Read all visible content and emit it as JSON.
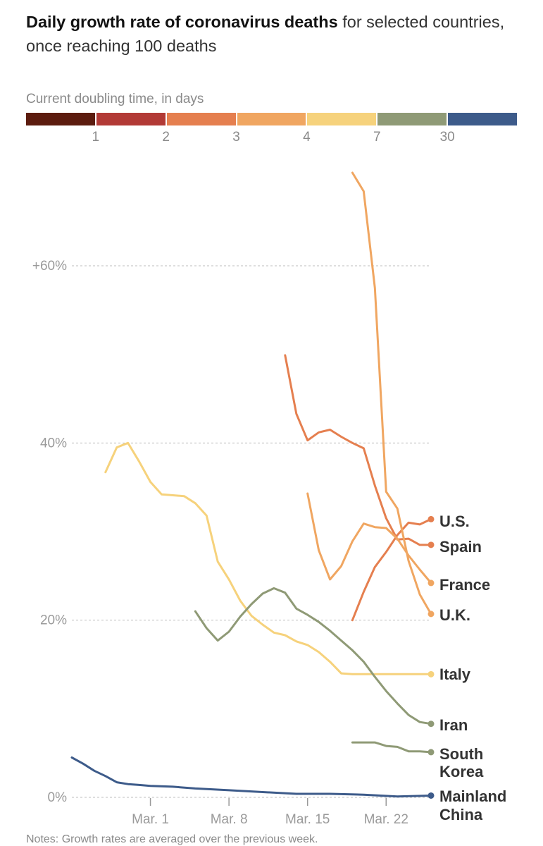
{
  "header": {
    "title_bold": "Daily growth rate of coronavirus deaths",
    "title_rest": " for selected countries, once reaching 100 deaths"
  },
  "legend_scale": {
    "label": "Current doubling time, in days",
    "colors": [
      "#5c1c0f",
      "#b23a36",
      "#e57f4f",
      "#f0a661",
      "#f6d27c",
      "#8f9a76",
      "#3d5b8a"
    ],
    "ticks": [
      "1",
      "2",
      "3",
      "4",
      "7",
      "30"
    ]
  },
  "note": "Notes: Growth rates are averaged over the previous week.",
  "chart_data": {
    "type": "line",
    "title": "Daily growth rate of coronavirus deaths for selected countries, once reaching 100 deaths",
    "xlabel": "",
    "ylabel": "",
    "x_range": [
      "2020-02-23",
      "2020-03-26"
    ],
    "ylim": [
      0,
      70
    ],
    "y_ticks": [
      0,
      20,
      40,
      60
    ],
    "y_tick_labels": [
      "0%",
      "20%",
      "40%",
      "+60%"
    ],
    "x_ticks": [
      "2020-03-01",
      "2020-03-08",
      "2020-03-15",
      "2020-03-22"
    ],
    "x_tick_labels": [
      "Mar. 1",
      "Mar. 8",
      "Mar. 15",
      "Mar. 22"
    ],
    "grid": "horizontal dashed",
    "series": [
      {
        "name": "U.S.",
        "color": "#e57f4f",
        "x": [
          "2020-03-19",
          "2020-03-20",
          "2020-03-21",
          "2020-03-22",
          "2020-03-23",
          "2020-03-24",
          "2020-03-25",
          "2020-03-26"
        ],
        "y": [
          20.0,
          23.2,
          26.0,
          27.7,
          29.6,
          31.0,
          30.8,
          31.4
        ]
      },
      {
        "name": "Spain",
        "color": "#e57f4f",
        "x": [
          "2020-03-13",
          "2020-03-14",
          "2020-03-15",
          "2020-03-16",
          "2020-03-17",
          "2020-03-18",
          "2020-03-19",
          "2020-03-20",
          "2020-03-21",
          "2020-03-22",
          "2020-03-23",
          "2020-03-24",
          "2020-03-25",
          "2020-03-26"
        ],
        "y": [
          49.9,
          43.3,
          40.3,
          41.2,
          41.5,
          40.7,
          40.0,
          39.4,
          35.2,
          31.5,
          29.1,
          29.2,
          28.5,
          28.5
        ]
      },
      {
        "name": "France",
        "color": "#f0a661",
        "x": [
          "2020-03-15",
          "2020-03-16",
          "2020-03-17",
          "2020-03-18",
          "2020-03-19",
          "2020-03-20",
          "2020-03-21",
          "2020-03-22",
          "2020-03-23",
          "2020-03-24",
          "2020-03-25",
          "2020-03-26"
        ],
        "y": [
          34.3,
          27.9,
          24.6,
          26.1,
          28.9,
          30.9,
          30.5,
          30.4,
          29.2,
          27.3,
          25.7,
          24.2
        ]
      },
      {
        "name": "U.K.",
        "color": "#f0a661",
        "x": [
          "2020-03-19",
          "2020-03-20",
          "2020-03-21",
          "2020-03-22",
          "2020-03-23",
          "2020-03-24",
          "2020-03-25",
          "2020-03-26"
        ],
        "y": [
          70.5,
          68.4,
          57.5,
          34.5,
          32.6,
          26.7,
          22.9,
          20.7
        ]
      },
      {
        "name": "Italy",
        "color": "#f6d27c",
        "x": [
          "2020-02-26",
          "2020-02-27",
          "2020-02-28",
          "2020-02-29",
          "2020-03-01",
          "2020-03-02",
          "2020-03-03",
          "2020-03-04",
          "2020-03-05",
          "2020-03-06",
          "2020-03-07",
          "2020-03-08",
          "2020-03-09",
          "2020-03-10",
          "2020-03-11",
          "2020-03-12",
          "2020-03-13",
          "2020-03-14",
          "2020-03-15",
          "2020-03-16",
          "2020-03-17",
          "2020-03-18",
          "2020-03-19",
          "2020-03-20",
          "2020-03-21",
          "2020-03-22",
          "2020-03-23",
          "2020-03-24",
          "2020-03-25",
          "2020-03-26"
        ],
        "y": [
          36.7,
          39.5,
          40.0,
          37.9,
          35.6,
          34.2,
          34.1,
          34.0,
          33.2,
          31.8,
          26.6,
          24.6,
          22.2,
          20.5,
          19.5,
          18.6,
          18.3,
          17.6,
          17.2,
          16.4,
          15.3,
          14.0,
          13.9,
          13.9,
          13.9,
          13.9,
          13.9,
          13.9,
          13.9,
          13.9
        ]
      },
      {
        "name": "Iran",
        "color": "#8f9a76",
        "x": [
          "2020-03-05",
          "2020-03-06",
          "2020-03-07",
          "2020-03-08",
          "2020-03-09",
          "2020-03-10",
          "2020-03-11",
          "2020-03-12",
          "2020-03-13",
          "2020-03-14",
          "2020-03-15",
          "2020-03-16",
          "2020-03-17",
          "2020-03-18",
          "2020-03-19",
          "2020-03-20",
          "2020-03-21",
          "2020-03-22",
          "2020-03-23",
          "2020-03-24",
          "2020-03-25",
          "2020-03-26"
        ],
        "y": [
          21.0,
          19.1,
          17.7,
          18.7,
          20.4,
          21.8,
          23.0,
          23.6,
          23.1,
          21.3,
          20.6,
          19.8,
          18.8,
          17.7,
          16.6,
          15.3,
          13.6,
          12.0,
          10.6,
          9.3,
          8.5,
          8.3
        ]
      },
      {
        "name": "South Korea",
        "color": "#8f9a76",
        "x": [
          "2020-03-19",
          "2020-03-20",
          "2020-03-21",
          "2020-03-22",
          "2020-03-23",
          "2020-03-24",
          "2020-03-25",
          "2020-03-26"
        ],
        "y": [
          6.2,
          6.2,
          6.2,
          5.8,
          5.7,
          5.2,
          5.2,
          5.1
        ]
      },
      {
        "name": "Mainland China",
        "color": "#3d5b8a",
        "x": [
          "2020-02-23",
          "2020-02-24",
          "2020-02-25",
          "2020-02-26",
          "2020-02-27",
          "2020-02-28",
          "2020-02-29",
          "2020-03-01",
          "2020-03-03",
          "2020-03-05",
          "2020-03-08",
          "2020-03-11",
          "2020-03-14",
          "2020-03-17",
          "2020-03-20",
          "2020-03-23",
          "2020-03-26"
        ],
        "y": [
          4.5,
          3.8,
          3.0,
          2.4,
          1.7,
          1.5,
          1.4,
          1.3,
          1.2,
          1.0,
          0.8,
          0.6,
          0.4,
          0.4,
          0.3,
          0.1,
          0.2
        ]
      }
    ],
    "labels": [
      {
        "series": "U.S.",
        "lines": [
          "U.S."
        ]
      },
      {
        "series": "Spain",
        "lines": [
          "Spain"
        ]
      },
      {
        "series": "France",
        "lines": [
          "France"
        ]
      },
      {
        "series": "U.K.",
        "lines": [
          "U.K."
        ]
      },
      {
        "series": "Italy",
        "lines": [
          "Italy"
        ]
      },
      {
        "series": "Iran",
        "lines": [
          "Iran"
        ]
      },
      {
        "series": "South Korea",
        "lines": [
          "South",
          "Korea"
        ]
      },
      {
        "series": "Mainland China",
        "lines": [
          "Mainland",
          "China"
        ]
      }
    ]
  }
}
